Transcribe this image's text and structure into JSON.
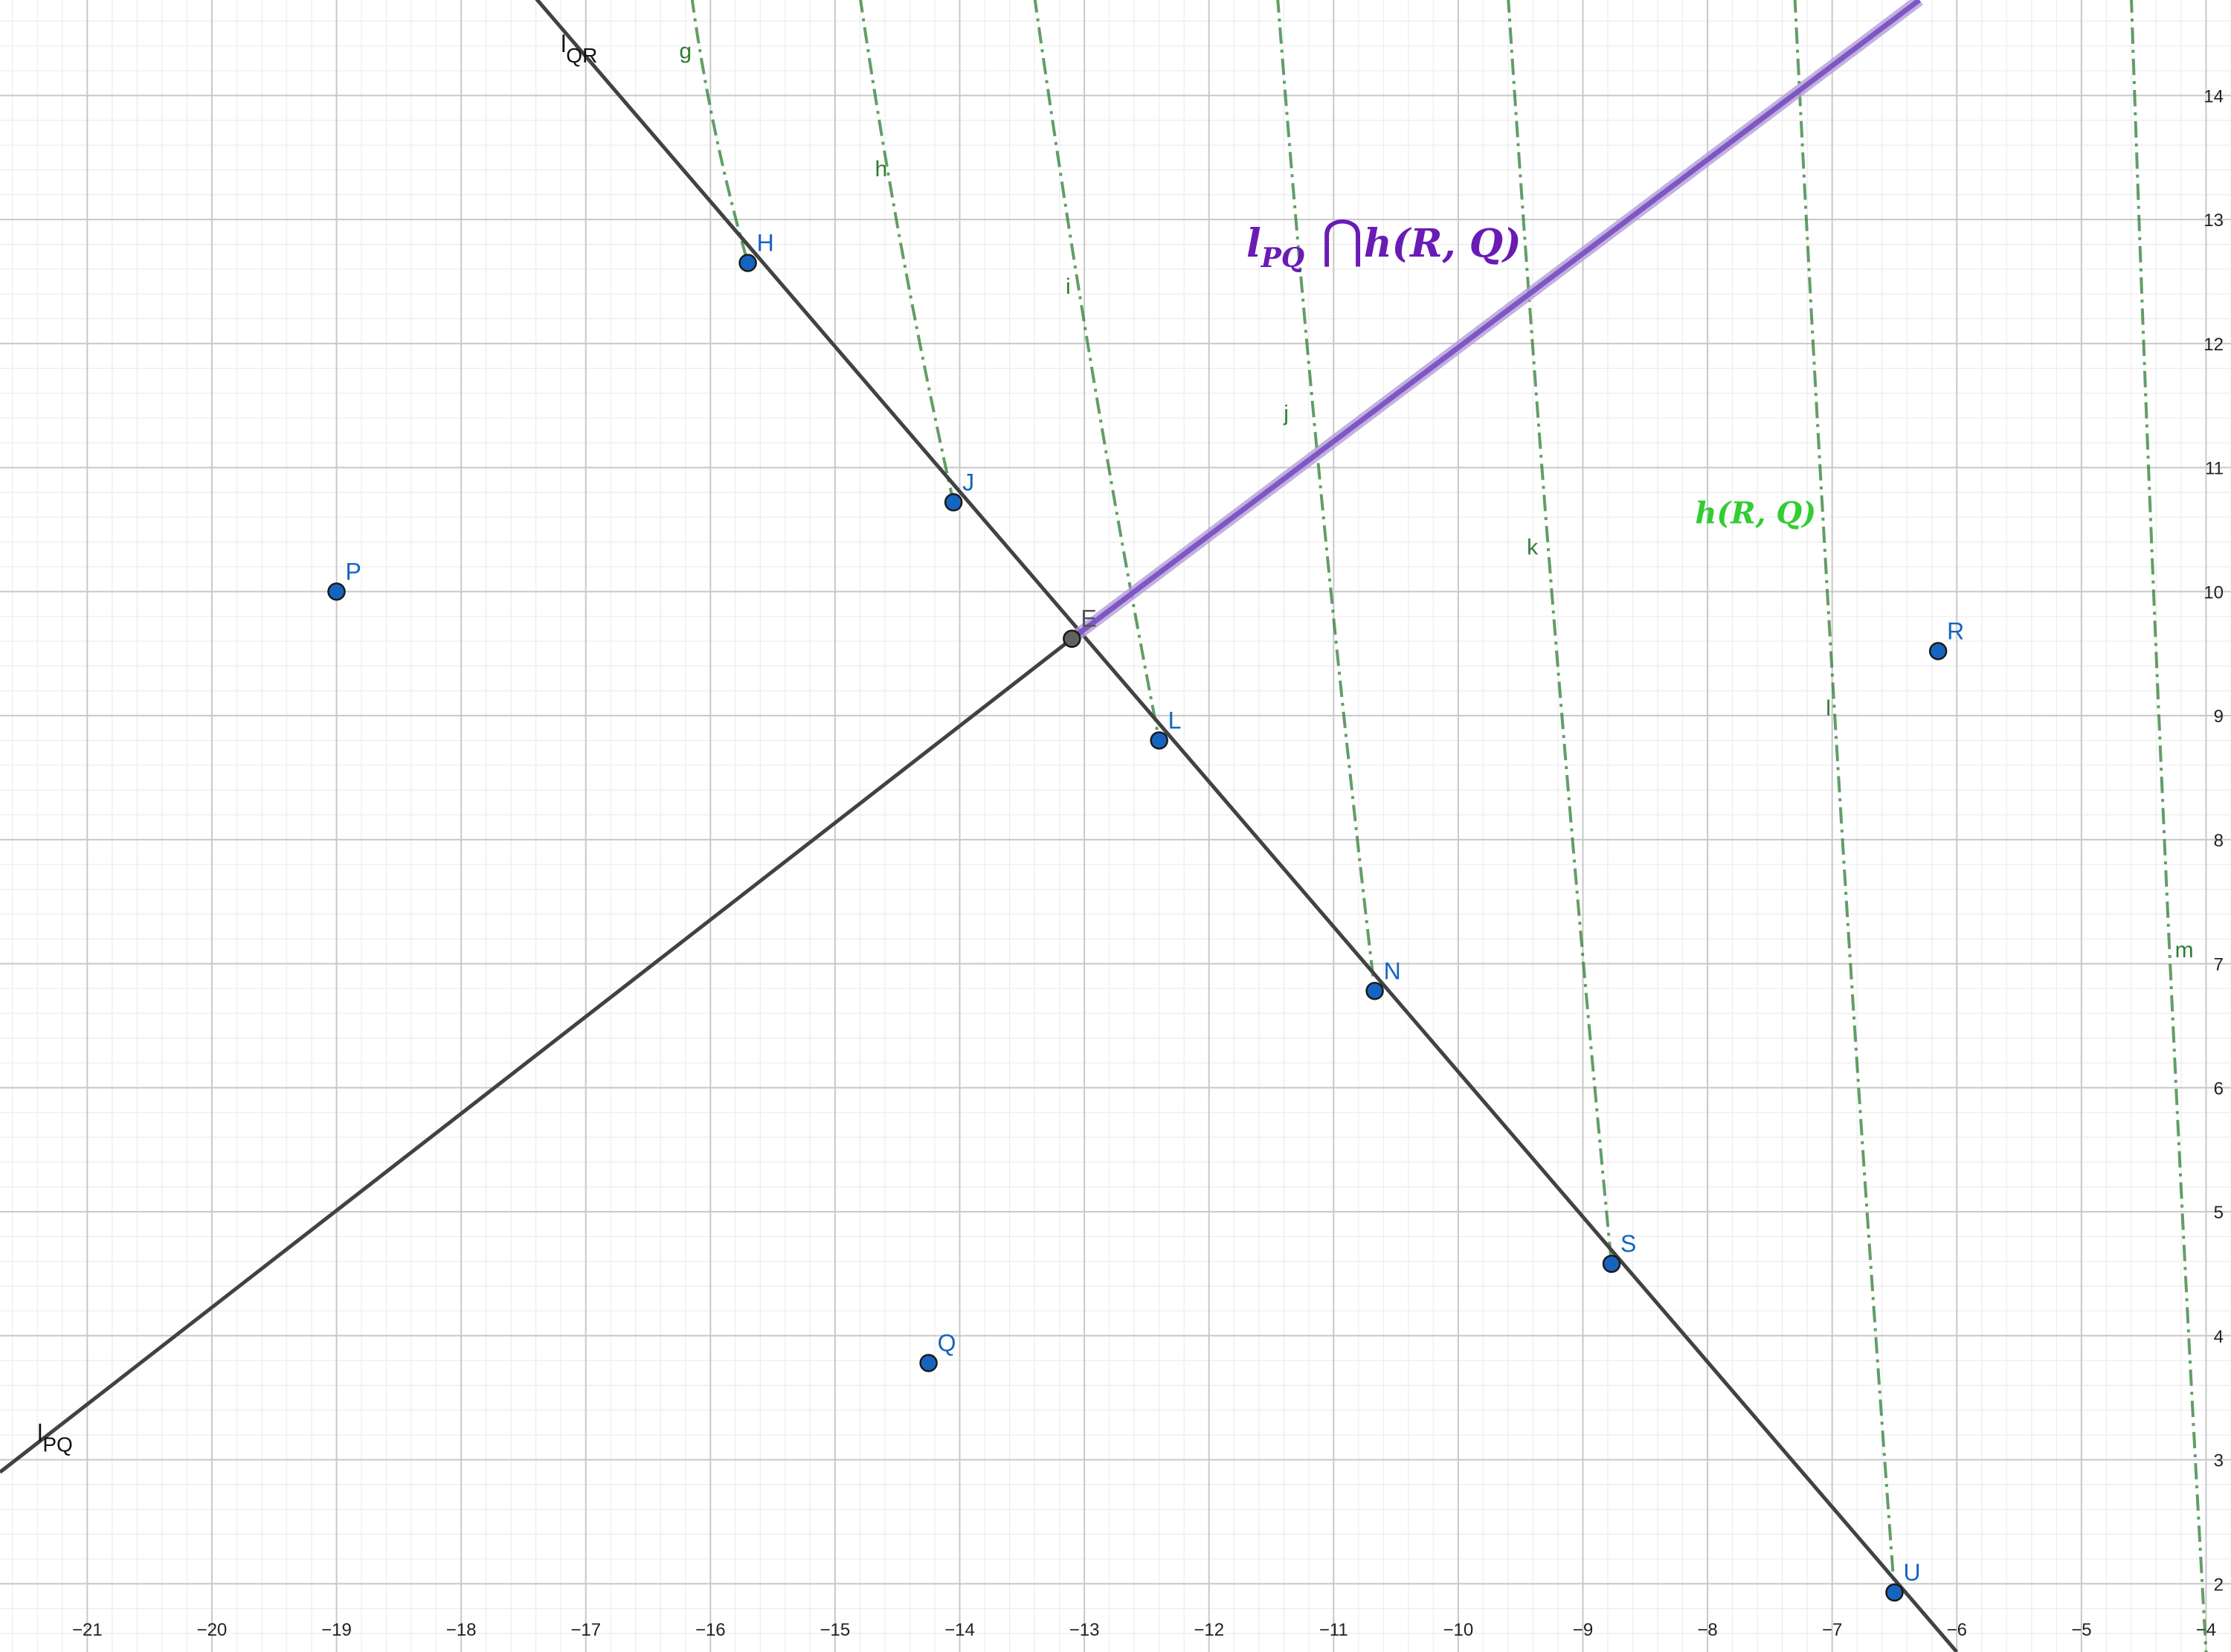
{
  "axes": {
    "x_ticks": [
      "-21",
      "-20",
      "-19",
      "-18",
      "-17",
      "-16",
      "-15",
      "-14",
      "-13",
      "-12",
      "-11",
      "-10",
      "-9",
      "-8",
      "-7",
      "-6",
      "-5",
      "-4"
    ],
    "y_ticks": [
      "2",
      "3",
      "4",
      "5",
      "6",
      "7",
      "8",
      "9",
      "10",
      "11",
      "12",
      "13",
      "14"
    ],
    "x_range": [
      -21.7,
      -3.8
    ],
    "y_range": [
      1.45,
      14.77
    ],
    "grid": true
  },
  "colors": {
    "point": "#1565c0",
    "intersection_point": "#616161",
    "line": "#424242",
    "hyperbola": "#2e7d32",
    "half_line": "#7e57c2",
    "label_purple": "#6a1bb5",
    "label_green": "#33cc33"
  },
  "points": [
    {
      "id": "P",
      "label": "P",
      "x": -19.0,
      "y": 10.0
    },
    {
      "id": "Q",
      "label": "Q",
      "x": -14.25,
      "y": 3.78
    },
    {
      "id": "R",
      "label": "R",
      "x": -6.15,
      "y": 9.52
    },
    {
      "id": "E",
      "label": "E",
      "x": -13.1,
      "y": 9.62
    },
    {
      "id": "H",
      "label": "H",
      "x": -15.7,
      "y": 12.65
    },
    {
      "id": "J",
      "label": "J",
      "x": -14.05,
      "y": 10.72
    },
    {
      "id": "L",
      "label": "L",
      "x": -12.4,
      "y": 8.8
    },
    {
      "id": "N",
      "label": "N",
      "x": -10.67,
      "y": 6.78
    },
    {
      "id": "S",
      "label": "S",
      "x": -8.77,
      "y": 4.58
    },
    {
      "id": "U",
      "label": "U",
      "x": -6.5,
      "y": 1.93
    }
  ],
  "lines": [
    {
      "id": "lQR",
      "label_main": "l",
      "label_sub": "QR",
      "through": [
        [
          -17.5,
          14.9
        ],
        [
          -6.0,
          1.45
        ]
      ],
      "label_at": [
        -17.2,
        14.35
      ]
    },
    {
      "id": "lPQ",
      "label_main": "l",
      "label_sub": "PQ",
      "through": [
        [
          -21.7,
          2.9
        ],
        [
          -13.1,
          9.62
        ]
      ],
      "label_at": [
        -21.4,
        3.15
      ]
    }
  ],
  "half_line": {
    "from": [
      -13.1,
      9.62
    ],
    "to": [
      -6.3,
      14.77
    ]
  },
  "curves": [
    {
      "label": "g",
      "pts": [
        [
          -16.15,
          14.8
        ],
        [
          -15.7,
          12.65
        ]
      ],
      "label_at": [
        -16.25,
        14.3
      ]
    },
    {
      "label": "h",
      "pts": [
        [
          -14.8,
          14.8
        ],
        [
          -14.05,
          10.72
        ]
      ],
      "label_at": [
        -14.68,
        13.35
      ]
    },
    {
      "label": "i",
      "pts": [
        [
          -13.4,
          14.8
        ],
        [
          -12.4,
          8.8
        ]
      ],
      "label_at": [
        -13.15,
        12.4
      ]
    },
    {
      "label": "j",
      "pts": [
        [
          -11.45,
          14.8
        ],
        [
          -10.67,
          6.78
        ]
      ],
      "label_at": [
        -11.4,
        11.38
      ]
    },
    {
      "label": "k",
      "pts": [
        [
          -9.6,
          14.8
        ],
        [
          -8.77,
          4.58
        ]
      ],
      "label_at": [
        -9.45,
        10.3
      ]
    },
    {
      "label": "l",
      "pts": [
        [
          -7.3,
          14.8
        ],
        [
          -6.5,
          1.93
        ]
      ],
      "label_at": [
        -7.05,
        9.0
      ]
    },
    {
      "label": "m",
      "pts": [
        [
          -4.6,
          14.8
        ],
        [
          -4.0,
          1.45
        ]
      ],
      "label_at": [
        -4.25,
        7.05
      ]
    }
  ],
  "annotations": {
    "intersection": {
      "l": "l",
      "sub": "PQ",
      "cap": "⋂",
      "rest": "h(R, Q)",
      "at": [
        -11.7,
        12.7
      ]
    },
    "hyperbola_label": {
      "text": "h(R, Q)",
      "at": [
        -8.1,
        10.55
      ]
    }
  }
}
